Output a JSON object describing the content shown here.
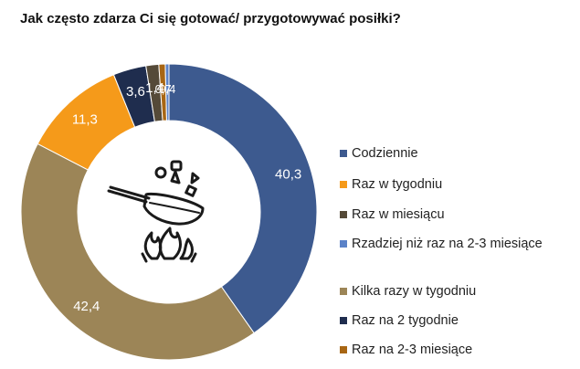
{
  "chart_data": {
    "type": "donut",
    "title": "Jak często zdarza Ci się gotować/ przygotowywać posiłki?",
    "categories": [
      "Codziennie",
      "Raz w tygodniu",
      "Raz w miesiącu",
      "Rzadziej niż raz na 2-3 miesiące",
      "Kilka razy w tygodniu",
      "Raz na 2 tygodnie",
      "Raz na 2-3 miesiące"
    ],
    "slice_order": [
      "Codziennie",
      "Kilka razy w tygodniu",
      "Raz w tygodniu",
      "Raz na 2 tygodnie",
      "Raz w miesiącu",
      "Raz na 2-3 miesiące",
      "Rzadziej niż raz na 2-3 miesiące"
    ],
    "values": {
      "Codziennie": 40.3,
      "Kilka razy w tygodniu": 42.4,
      "Raz w tygodniu": 11.3,
      "Raz na 2 tygodnie": 3.6,
      "Raz w miesiącu": 1.4,
      "Raz na 2-3 miesiące": 0.7,
      "Rzadziej niż raz na 2-3 miesiące": 0.4
    },
    "data_labels": {
      "Codziennie": "40,3",
      "Kilka razy w tygodniu": "42,4",
      "Raz w tygodniu": "11,3",
      "Raz na 2 tygodnie": "3,6",
      "Raz w miesiącu": "1,4",
      "Raz na 2-3 miesiące": "0,7",
      "Rzadziej niż raz na 2-3 miesiące": "0,4"
    },
    "colors": {
      "Codziennie": "#3d5a8f",
      "Raz w tygodniu": "#f59a1a",
      "Raz w miesiącu": "#554a38",
      "Rzadziej niż raz na 2-3 miesiące": "#5b82c8",
      "Kilka razy w tygodniu": "#9c8557",
      "Raz na 2 tygodnie": "#1f2d4e",
      "Raz na 2-3 miesiące": "#a86614"
    },
    "center_icon": "frying-pan-cooking-icon",
    "legend_position": "right"
  }
}
